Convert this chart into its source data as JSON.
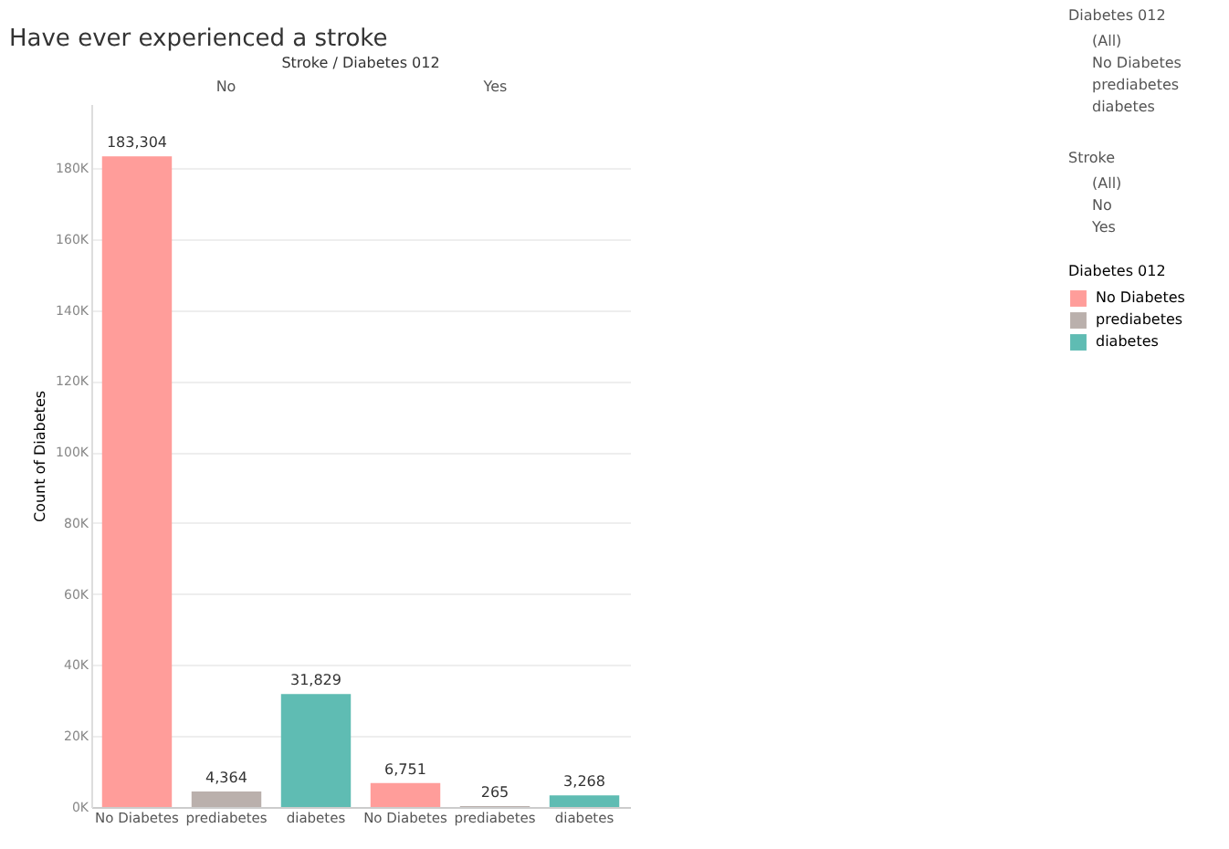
{
  "chart_data": {
    "type": "bar",
    "title": "Have ever experienced a stroke",
    "ylabel": "Count of Diabetes",
    "legend_title": "Diabetes 012",
    "categories": [
      "No Diabetes",
      "prediabetes",
      "diabetes",
      "No Diabetes",
      "prediabetes",
      "diabetes"
    ],
    "series": [
      {
        "name": "No Diabetes",
        "color": "#ff9d9a",
        "values": [
          183304,
          null,
          null,
          6751,
          null,
          null
        ],
        "value_labels": [
          "183,304",
          null,
          null,
          "6,751",
          null,
          null
        ]
      },
      {
        "name": "prediabetes",
        "color": "#bab0ac",
        "values": [
          null,
          4364,
          null,
          null,
          265,
          null
        ],
        "value_labels": [
          null,
          "4,364",
          null,
          null,
          "265",
          null
        ]
      },
      {
        "name": "diabetes",
        "color": "#5fbcb3",
        "values": [
          null,
          null,
          31829,
          null,
          null,
          3268
        ],
        "value_labels": [
          null,
          null,
          "31,829",
          null,
          null,
          "3,268"
        ]
      }
    ],
    "ylim": [
      0,
      198000
    ],
    "yticks": [
      {
        "value": 0,
        "label": "0K"
      },
      {
        "value": 20000,
        "label": "20K"
      },
      {
        "value": 40000,
        "label": "40K"
      },
      {
        "value": 60000,
        "label": "60K"
      },
      {
        "value": 80000,
        "label": "80K"
      },
      {
        "value": 100000,
        "label": "100K"
      },
      {
        "value": 120000,
        "label": "120K"
      },
      {
        "value": 140000,
        "label": "140K"
      },
      {
        "value": 160000,
        "label": "160K"
      },
      {
        "value": 180000,
        "label": "180K"
      }
    ],
    "grid": "y",
    "legend": "right",
    "annotations": [
      "Stroke / Diabetes 012",
      "No",
      "Yes",
      "Diabetes 012",
      "(All)",
      "No Diabetes",
      "prediabetes",
      "diabetes",
      "Stroke",
      "(All)",
      "No",
      "Yes"
    ]
  }
}
